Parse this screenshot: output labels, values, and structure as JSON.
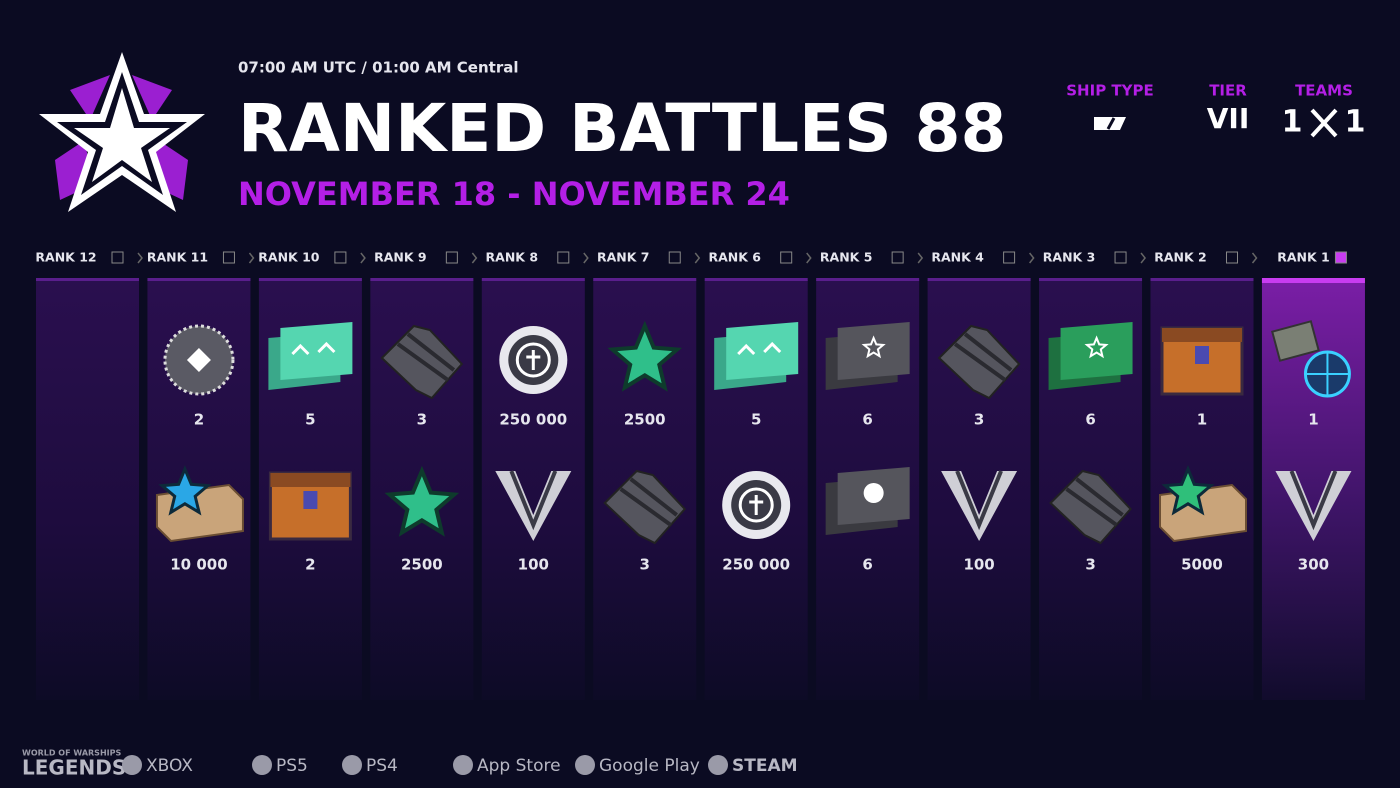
{
  "header": {
    "time": "07:00 AM UTC / 01:00 AM Central",
    "title": "RANKED BATTLES 88",
    "dates": "NOVEMBER 18 - NOVEMBER 24"
  },
  "info": {
    "ship_type": {
      "label": "SHIP TYPE"
    },
    "tier": {
      "label": "TIER",
      "value": "VII"
    },
    "teams": {
      "label": "TEAMS",
      "left": "1",
      "right": "1"
    }
  },
  "ranks": [
    {
      "label": "RANK 12",
      "rewards": []
    },
    {
      "label": "RANK 11",
      "rewards": [
        "2",
        "10 000"
      ]
    },
    {
      "label": "RANK 10",
      "rewards": [
        "5",
        "2"
      ]
    },
    {
      "label": "RANK 9",
      "rewards": [
        "3",
        "2500"
      ]
    },
    {
      "label": "RANK 8",
      "rewards": [
        "250 000",
        "100"
      ]
    },
    {
      "label": "RANK 7",
      "rewards": [
        "2500",
        "3"
      ]
    },
    {
      "label": "RANK 6",
      "rewards": [
        "5",
        "250 000"
      ]
    },
    {
      "label": "RANK 5",
      "rewards": [
        "6",
        "6"
      ]
    },
    {
      "label": "RANK 4",
      "rewards": [
        "3",
        "100"
      ]
    },
    {
      "label": "RANK 3",
      "rewards": [
        "6",
        "3"
      ]
    },
    {
      "label": "RANK 2",
      "rewards": [
        "1",
        "5000"
      ]
    },
    {
      "label": "RANK 1",
      "rewards": [
        "1",
        "300"
      ]
    }
  ],
  "footer": {
    "brand_top": "WORLD OF WARSHIPS",
    "brand": "LEGENDS",
    "platforms": [
      "XBOX",
      "PS5",
      "PS4",
      "App Store",
      "Google Play",
      "STEAM"
    ]
  }
}
